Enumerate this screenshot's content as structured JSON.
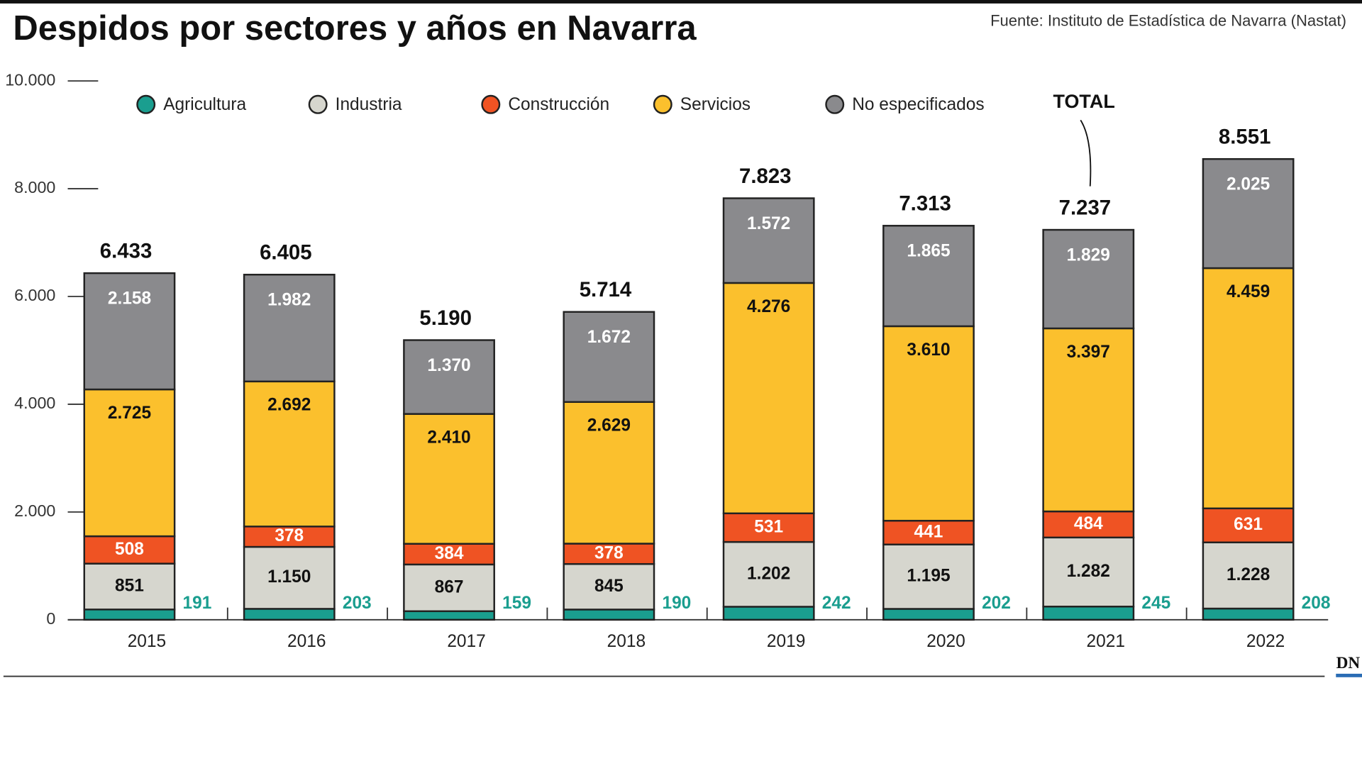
{
  "chart_data": {
    "type": "stacked_bar",
    "title": "Despidos por sectores y años en Navarra",
    "source": "Fuente: Instituto de Estadística de Navarra (Nastat)",
    "annotation": "TOTAL",
    "logo": "DN",
    "categories": [
      "2015",
      "2016",
      "2017",
      "2018",
      "2019",
      "2020",
      "2021",
      "2022"
    ],
    "series": [
      {
        "name": "Agricultura",
        "color": "#1a9e8f",
        "values": [
          191,
          203,
          159,
          190,
          242,
          202,
          245,
          208
        ],
        "value_labels": [
          "191",
          "203",
          "159",
          "190",
          "242",
          "202",
          "245",
          "208"
        ]
      },
      {
        "name": "Industria",
        "color": "#d6d6ce",
        "values": [
          851,
          1150,
          867,
          845,
          1202,
          1195,
          1282,
          1228
        ],
        "value_labels": [
          "851",
          "1.150",
          "867",
          "845",
          "1.202",
          "1.195",
          "1.282",
          "1.228"
        ]
      },
      {
        "name": "Construcción",
        "color": "#ef5323",
        "values": [
          508,
          378,
          384,
          378,
          531,
          441,
          484,
          631
        ],
        "value_labels": [
          "508",
          "378",
          "384",
          "378",
          "531",
          "441",
          "484",
          "631"
        ]
      },
      {
        "name": "Servicios",
        "color": "#fbc02d",
        "values": [
          2725,
          2692,
          2410,
          2629,
          4276,
          3610,
          3397,
          4459
        ],
        "value_labels": [
          "2.725",
          "2.692",
          "2.410",
          "2.629",
          "4.276",
          "3.610",
          "3.397",
          "4.459"
        ]
      },
      {
        "name": "No especificados",
        "color": "#8a8a8d",
        "values": [
          2158,
          1982,
          1370,
          1672,
          1572,
          1865,
          1829,
          2025
        ],
        "value_labels": [
          "2.158",
          "1.982",
          "1.370",
          "1.672",
          "1.572",
          "1.865",
          "1.829",
          "2.025"
        ]
      }
    ],
    "totals": {
      "values": [
        6433,
        6405,
        5190,
        5714,
        7823,
        7313,
        7237,
        8551
      ],
      "value_labels": [
        "6.433",
        "6.405",
        "5.190",
        "5.714",
        "7.823",
        "7.313",
        "7.237",
        "8.551"
      ]
    },
    "ylim": [
      0,
      10000
    ],
    "yticks": [
      0,
      {
        "value": 2000,
        "label": "2.000"
      },
      {
        "value": 4000,
        "label": "4.000"
      },
      {
        "value": 6000,
        "label": "6.000"
      },
      {
        "value": 8000,
        "label": "8.000"
      },
      {
        "value": 10000,
        "label": "10.000"
      }
    ]
  }
}
